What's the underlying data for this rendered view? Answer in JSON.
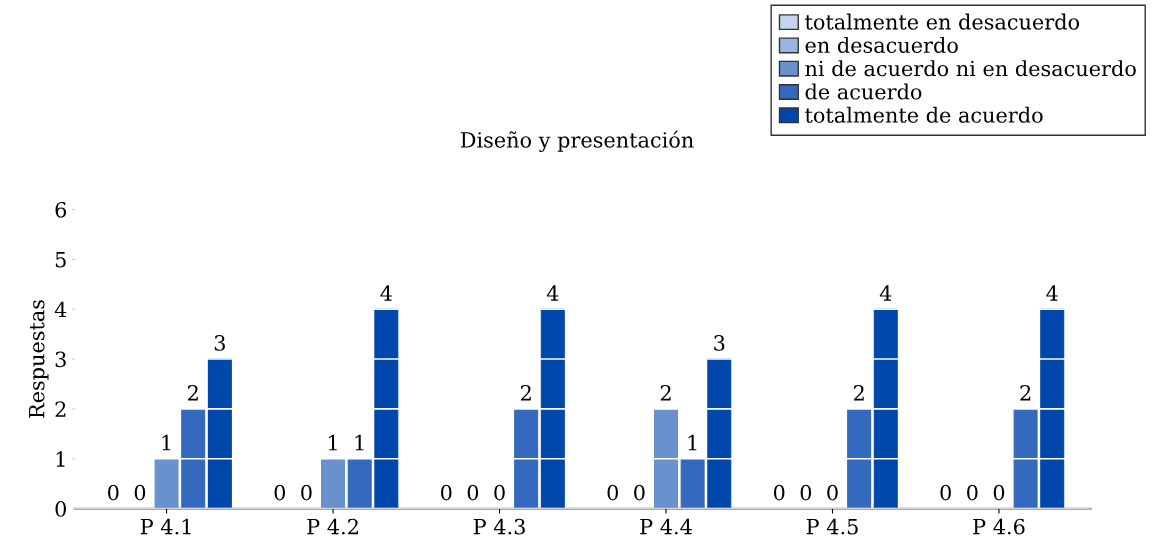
{
  "chart_data": {
    "type": "bar",
    "title": "Diseño y presentación",
    "ylabel": "Respuestas",
    "categories": [
      "P 4.1",
      "P 4.2",
      "P 4.3",
      "P 4.4",
      "P 4.5",
      "P 4.6"
    ],
    "series": [
      {
        "name": "totalmente en desacuerdo",
        "color": "#c5d5ee",
        "values": [
          0,
          0,
          0,
          0,
          0,
          0
        ]
      },
      {
        "name": "en desacuerdo",
        "color": "#98b4e0",
        "values": [
          0,
          0,
          0,
          0,
          0,
          0
        ]
      },
      {
        "name": "ni de acuerdo ni en desacuerdo",
        "color": "#6891cd",
        "values": [
          1,
          1,
          0,
          2,
          0,
          0
        ]
      },
      {
        "name": "de acuerdo",
        "color": "#3469bd",
        "values": [
          2,
          1,
          2,
          1,
          2,
          2
        ]
      },
      {
        "name": "totalmente de acuerdo",
        "color": "#0047ab",
        "values": [
          3,
          4,
          4,
          3,
          4,
          4
        ]
      }
    ],
    "ylim": [
      0,
      6
    ],
    "yticks": [
      0,
      1,
      2,
      3,
      4,
      5,
      6
    ],
    "grid": "y",
    "legend": "top right",
    "data_labels": true
  }
}
